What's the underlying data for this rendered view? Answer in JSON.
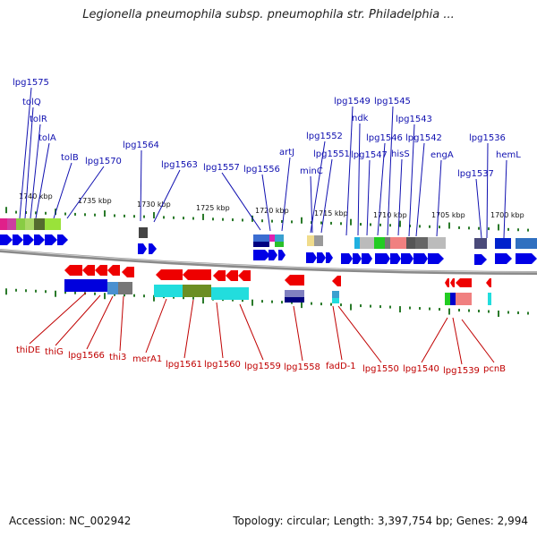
{
  "title": "Legionella pneumophila subsp. pneumophila str. Philadelphia ...",
  "accession": "Accession: NC_002942",
  "topology": "Topology: circular; Length: 3,397,754 bp; Genes: 2,994",
  "colors": {
    "forward_gene": "#0000e6",
    "reverse_gene": "#ee0000",
    "top_label": "#1010b0",
    "bottom_label": "#c00000",
    "backbone": "#888888",
    "tick": "#2a7a2a"
  },
  "scale_ticks": [
    "1740 kbp",
    "1735 kbp",
    "1730 kbp",
    "1725 kbp",
    "1720 kbp",
    "1715 kbp",
    "1710 kbp",
    "1705 kbp",
    "1700 kbp"
  ],
  "top_labels": [
    "lpg1575",
    "tolQ",
    "tolR",
    "tolA",
    "tolB",
    "lpg1570",
    "lpg1564",
    "lpg1563",
    "lpg1557",
    "lpg1556",
    "artJ",
    "lpg1552",
    "minC",
    "lpg1551",
    "lpg1549",
    "ndk",
    "lpg1547",
    "lpg1546",
    "lpg1545",
    "hisS",
    "lpg1543",
    "lpg1542",
    "engA",
    "lpg1537",
    "lpg1536",
    "hemL"
  ],
  "bottom_labels": [
    "thiDE",
    "thiG",
    "lpg1566",
    "thi3",
    "merA1",
    "lpg1561",
    "lpg1560",
    "lpg1559",
    "lpg1558",
    "fadD-1",
    "lpg1550",
    "lpg1540",
    "lpg1539",
    "pcnB"
  ]
}
